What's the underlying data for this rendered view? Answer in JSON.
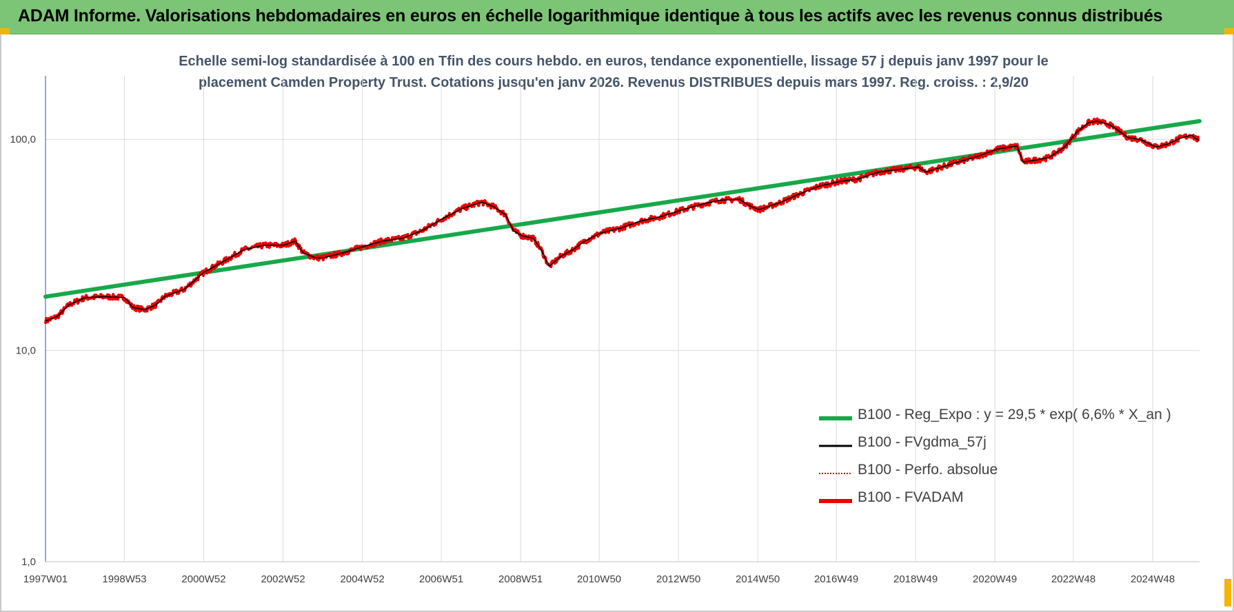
{
  "header": {
    "title": "ADAM Informe. Valorisations hebdomadaires en euros en échelle logarithmique identique à tous les actifs avec les revenus connus distribués"
  },
  "colors": {
    "header_bg": "#7cc576",
    "corner_accent": "#f2b600",
    "regression": "#17a84a",
    "fvgdma": "#000000",
    "perfo": "#c00000",
    "fvadam": "#ee0000",
    "title_text": "#44546a"
  },
  "chart_data": {
    "type": "line",
    "title_line1": "Echelle semi-log standardisée à 100 en Tfin des cours hebdo. en euros, tendance exponentielle, lissage 57 j depuis janv 1997 pour le",
    "title_line2": "placement Camden Property Trust. Cotations jusqu'en janv 2026. Revenus DISTRIBUES depuis mars 1997. Reg. croiss. : 2,9/20",
    "y_scale": "log",
    "ylim": [
      1,
      200
    ],
    "y_ticks": [
      {
        "value": 100,
        "label": "100,0"
      },
      {
        "value": 10,
        "label": "10,0"
      },
      {
        "value": 1,
        "label": "1,0"
      }
    ],
    "x_range": [
      1997.0,
      2026.1
    ],
    "x_ticks": [
      {
        "year": 1997.0,
        "label": "1997W01"
      },
      {
        "year": 1998.99,
        "label": "1998W53"
      },
      {
        "year": 2000.99,
        "label": "2000W52"
      },
      {
        "year": 2002.99,
        "label": "2002W52"
      },
      {
        "year": 2004.99,
        "label": "2004W52"
      },
      {
        "year": 2006.98,
        "label": "2006W51"
      },
      {
        "year": 2008.98,
        "label": "2008W51"
      },
      {
        "year": 2010.96,
        "label": "2010W50"
      },
      {
        "year": 2012.96,
        "label": "2012W50"
      },
      {
        "year": 2014.96,
        "label": "2014W50"
      },
      {
        "year": 2016.94,
        "label": "2016W49"
      },
      {
        "year": 2018.94,
        "label": "2018W49"
      },
      {
        "year": 2020.94,
        "label": "2020W49"
      },
      {
        "year": 2022.92,
        "label": "2022W48"
      },
      {
        "year": 2024.92,
        "label": "2024W48"
      }
    ],
    "grid": "vertical",
    "legend_position": "bottom-right",
    "series": [
      {
        "name": "B100 - Reg_Expo : y = 29,5 * exp( 6,6% *  X_an )",
        "color": "#17a84a",
        "values": [
          [
            1997.0,
            18.0
          ],
          [
            2026.1,
            122.0
          ]
        ]
      },
      {
        "name": "B100 - FVgdma_57j",
        "color": "#000000",
        "values": []
      },
      {
        "name": "B100 - Perfo. absolue",
        "color": "#c00000",
        "values": []
      },
      {
        "name": "B100 - FVADAM",
        "color": "#ee0000",
        "values": [
          [
            1997.0,
            13.8
          ],
          [
            1997.3,
            14.5
          ],
          [
            1997.6,
            16.5
          ],
          [
            1998.0,
            17.8
          ],
          [
            1998.5,
            18.0
          ],
          [
            1999.0,
            17.8
          ],
          [
            1999.2,
            16.0
          ],
          [
            1999.5,
            15.6
          ],
          [
            1999.8,
            16.5
          ],
          [
            2000.0,
            18.0
          ],
          [
            2000.5,
            19.5
          ],
          [
            2001.0,
            23.5
          ],
          [
            2001.5,
            26.5
          ],
          [
            2002.0,
            30.0
          ],
          [
            2002.5,
            31.5
          ],
          [
            2003.0,
            31.5
          ],
          [
            2003.3,
            33.0
          ],
          [
            2003.5,
            29.0
          ],
          [
            2003.8,
            27.5
          ],
          [
            2004.0,
            27.5
          ],
          [
            2004.5,
            29.0
          ],
          [
            2005.0,
            31.0
          ],
          [
            2005.5,
            33.0
          ],
          [
            2006.0,
            34.0
          ],
          [
            2006.5,
            37.0
          ],
          [
            2007.0,
            42.0
          ],
          [
            2007.5,
            47.0
          ],
          [
            2008.0,
            50.5
          ],
          [
            2008.3,
            48.0
          ],
          [
            2008.6,
            44.0
          ],
          [
            2008.8,
            37.0
          ],
          [
            2009.0,
            35.0
          ],
          [
            2009.3,
            34.0
          ],
          [
            2009.5,
            30.0
          ],
          [
            2009.7,
            25.0
          ],
          [
            2010.0,
            28.0
          ],
          [
            2010.3,
            30.0
          ],
          [
            2010.6,
            33.0
          ],
          [
            2011.0,
            36.0
          ],
          [
            2011.5,
            38.0
          ],
          [
            2012.0,
            41.0
          ],
          [
            2012.5,
            43.0
          ],
          [
            2013.0,
            46.0
          ],
          [
            2013.5,
            49.0
          ],
          [
            2014.0,
            51.5
          ],
          [
            2014.5,
            52.0
          ],
          [
            2014.8,
            48.0
          ],
          [
            2015.0,
            46.5
          ],
          [
            2015.5,
            50.0
          ],
          [
            2016.0,
            55.0
          ],
          [
            2016.5,
            60.0
          ],
          [
            2017.0,
            63.0
          ],
          [
            2017.5,
            65.0
          ],
          [
            2018.0,
            70.0
          ],
          [
            2018.5,
            72.0
          ],
          [
            2019.0,
            74.0
          ],
          [
            2019.2,
            70.0
          ],
          [
            2019.5,
            73.0
          ],
          [
            2020.0,
            78.0
          ],
          [
            2020.5,
            83.0
          ],
          [
            2021.0,
            90.0
          ],
          [
            2021.5,
            93.0
          ],
          [
            2021.65,
            78.0
          ],
          [
            2022.0,
            80.0
          ],
          [
            2022.3,
            82.0
          ],
          [
            2022.7,
            92.0
          ],
          [
            2023.0,
            108.0
          ],
          [
            2023.3,
            120.0
          ],
          [
            2023.5,
            122.0
          ],
          [
            2023.8,
            118.0
          ],
          [
            2024.0,
            112.0
          ],
          [
            2024.3,
            102.0
          ],
          [
            2024.6,
            100.0
          ],
          [
            2024.8,
            96.0
          ],
          [
            2025.0,
            92.0
          ],
          [
            2025.3,
            95.0
          ],
          [
            2025.6,
            101.0
          ],
          [
            2025.9,
            105.0
          ],
          [
            2026.0,
            101.0
          ],
          [
            2026.1,
            99.0
          ]
        ]
      }
    ]
  },
  "legend": [
    {
      "label": "B100 - Reg_Expo : y = 29,5 * exp( 6,6% *  X_an )",
      "color": "#17a84a",
      "style": "thick"
    },
    {
      "label": "B100 - FVgdma_57j",
      "color": "#000000",
      "style": "medium"
    },
    {
      "label": "B100 - Perfo. absolue",
      "color": "#c00000",
      "style": "dotted"
    },
    {
      "label": "B100 - FVADAM",
      "color": "#ee0000",
      "style": "thick"
    }
  ]
}
